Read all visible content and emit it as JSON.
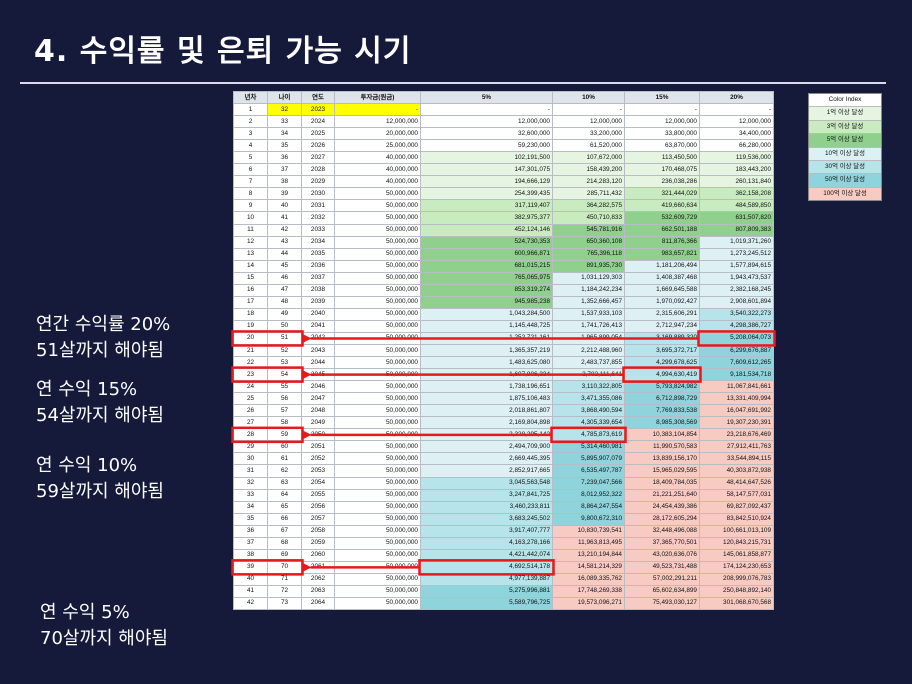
{
  "title": "4. 수익률 및 은퇴 가능 시기",
  "headers": [
    "년차",
    "나이",
    "연도",
    "투자금(원금)",
    "5%",
    "10%",
    "15%",
    "20%"
  ],
  "rows": [
    [
      1,
      32,
      2023,
      "-",
      "-",
      "-",
      "-",
      "-"
    ],
    [
      2,
      33,
      2024,
      "12,000,000",
      "12,000,000",
      "12,000,000",
      "12,000,000",
      "12,000,000"
    ],
    [
      3,
      34,
      2025,
      "20,000,000",
      "32,600,000",
      "33,200,000",
      "33,800,000",
      "34,400,000"
    ],
    [
      4,
      35,
      2026,
      "25,000,000",
      "59,230,000",
      "61,520,000",
      "63,870,000",
      "66,280,000"
    ],
    [
      5,
      36,
      2027,
      "40,000,000",
      "102,191,500",
      "107,672,000",
      "113,450,500",
      "119,536,000"
    ],
    [
      6,
      37,
      2028,
      "40,000,000",
      "147,301,075",
      "158,439,200",
      "170,468,075",
      "183,443,200"
    ],
    [
      7,
      38,
      2029,
      "40,000,000",
      "194,666,129",
      "214,283,120",
      "236,038,286",
      "260,131,840"
    ],
    [
      8,
      39,
      2030,
      "50,000,000",
      "254,399,435",
      "285,711,432",
      "321,444,029",
      "362,158,208"
    ],
    [
      9,
      40,
      2031,
      "50,000,000",
      "317,119,407",
      "364,282,575",
      "419,660,634",
      "484,589,850"
    ],
    [
      10,
      41,
      2032,
      "50,000,000",
      "382,975,377",
      "450,710,833",
      "532,609,729",
      "631,507,820"
    ],
    [
      11,
      42,
      2033,
      "50,000,000",
      "452,124,146",
      "545,781,916",
      "662,501,188",
      "807,809,383"
    ],
    [
      12,
      43,
      2034,
      "50,000,000",
      "524,730,353",
      "650,360,108",
      "811,876,366",
      "1,019,371,260"
    ],
    [
      13,
      44,
      2035,
      "50,000,000",
      "600,966,871",
      "765,396,118",
      "983,657,821",
      "1,273,245,512"
    ],
    [
      14,
      45,
      2036,
      "50,000,000",
      "681,015,215",
      "891,935,730",
      "1,181,206,494",
      "1,577,894,615"
    ],
    [
      15,
      46,
      2037,
      "50,000,000",
      "765,065,975",
      "1,031,129,303",
      "1,408,387,468",
      "1,943,473,537"
    ],
    [
      16,
      47,
      2038,
      "50,000,000",
      "853,319,274",
      "1,184,242,234",
      "1,669,645,588",
      "2,382,168,245"
    ],
    [
      17,
      48,
      2039,
      "50,000,000",
      "945,985,238",
      "1,352,666,457",
      "1,970,092,427",
      "2,908,601,894"
    ],
    [
      18,
      49,
      2040,
      "50,000,000",
      "1,043,284,500",
      "1,537,933,103",
      "2,315,606,291",
      "3,540,322,273"
    ],
    [
      19,
      50,
      2041,
      "50,000,000",
      "1,145,448,725",
      "1,741,726,413",
      "2,712,947,234",
      "4,298,386,727"
    ],
    [
      20,
      51,
      2042,
      "50,000,000",
      "1,252,721,161",
      "1,965,899,054",
      "3,169,889,320",
      "5,208,064,073"
    ],
    [
      21,
      52,
      2043,
      "50,000,000",
      "1,365,357,219",
      "2,212,488,960",
      "3,695,372,717",
      "6,299,676,887"
    ],
    [
      22,
      53,
      2044,
      "50,000,000",
      "1,483,625,080",
      "2,483,737,855",
      "4,299,678,625",
      "7,609,612,265"
    ],
    [
      23,
      54,
      2045,
      "50,000,000",
      "1,607,806,334",
      "2,782,111,641",
      "4,994,630,419",
      "9,181,534,718"
    ],
    [
      24,
      55,
      2046,
      "50,000,000",
      "1,738,196,651",
      "3,110,322,805",
      "5,793,824,982",
      "11,067,841,661"
    ],
    [
      25,
      56,
      2047,
      "50,000,000",
      "1,875,106,483",
      "3,471,355,086",
      "6,712,898,729",
      "13,331,409,994"
    ],
    [
      26,
      57,
      2048,
      "50,000,000",
      "2,018,861,807",
      "3,868,490,594",
      "7,769,833,538",
      "16,047,691,992"
    ],
    [
      27,
      58,
      2049,
      "50,000,000",
      "2,169,804,898",
      "4,305,339,654",
      "8,985,308,569",
      "19,307,230,391"
    ],
    [
      28,
      59,
      2050,
      "50,000,000",
      "2,328,295,142",
      "4,785,873,619",
      "10,383,104,854",
      "23,218,676,469"
    ],
    [
      29,
      60,
      2051,
      "50,000,000",
      "2,494,709,900",
      "5,314,460,981",
      "11,990,570,583",
      "27,912,411,763"
    ],
    [
      30,
      61,
      2052,
      "50,000,000",
      "2,669,445,395",
      "5,895,907,079",
      "13,839,156,170",
      "33,544,894,115"
    ],
    [
      31,
      62,
      2053,
      "50,000,000",
      "2,852,917,665",
      "6,535,497,787",
      "15,965,029,595",
      "40,303,872,938"
    ],
    [
      32,
      63,
      2054,
      "50,000,000",
      "3,045,563,548",
      "7,239,047,566",
      "18,409,784,035",
      "48,414,647,526"
    ],
    [
      33,
      64,
      2055,
      "50,000,000",
      "3,247,841,725",
      "8,012,952,322",
      "21,221,251,640",
      "58,147,577,031"
    ],
    [
      34,
      65,
      2056,
      "50,000,000",
      "3,460,233,811",
      "8,864,247,554",
      "24,454,439,386",
      "69,827,092,437"
    ],
    [
      35,
      66,
      2057,
      "50,000,000",
      "3,683,245,502",
      "9,800,672,310",
      "28,172,605,294",
      "83,842,510,924"
    ],
    [
      36,
      67,
      2058,
      "50,000,000",
      "3,917,407,777",
      "10,830,739,541",
      "32,448,496,088",
      "100,661,013,109"
    ],
    [
      37,
      68,
      2059,
      "50,000,000",
      "4,163,278,166",
      "11,963,813,495",
      "37,365,770,501",
      "120,843,215,731"
    ],
    [
      38,
      69,
      2060,
      "50,000,000",
      "4,421,442,074",
      "13,210,194,844",
      "43,020,636,076",
      "145,061,858,877"
    ],
    [
      39,
      70,
      2061,
      "50,000,000",
      "4,692,514,178",
      "14,581,214,329",
      "49,523,731,488",
      "174,124,230,653"
    ],
    [
      40,
      71,
      2062,
      "50,000,000",
      "4,977,139,887",
      "16,089,335,762",
      "57,002,291,211",
      "208,999,076,783"
    ],
    [
      41,
      72,
      2063,
      "50,000,000",
      "5,275,996,881",
      "17,748,269,338",
      "65,602,634,899",
      "250,848,892,140"
    ],
    [
      42,
      73,
      2064,
      "50,000,000",
      "5,589,796,725",
      "19,573,096,271",
      "75,493,030,127",
      "301,068,670,568"
    ]
  ],
  "colors": {
    "t1": "#e6f5e2",
    "t3": "#c8ebc0",
    "t5": "#8fd08d",
    "t10": "#ddf1f5",
    "t30": "#b6e4ea",
    "t50": "#8fd3dc",
    "t100": "#f8cbc2",
    "highlight_yellow": "#ffff00",
    "red_box": "#e8191c"
  },
  "legend": {
    "title": "Color Index",
    "items": [
      "1억 이상 달성",
      "3억 이상 달성",
      "5억 이상 달성",
      "10억 이상 달성",
      "30억 이상 달성",
      "50억 이상 달성",
      "100억 이상 달성"
    ]
  },
  "notes": {
    "n20_line1": "연간 수익률 20%",
    "n20_line2": "51살까지  해야됨",
    "n15_line1": "연 수익 15%",
    "n15_line2": "54살까지  해야됨",
    "n10_line1": "연 수익 10%",
    "n10_line2": "59살까지  해야됨",
    "n5_line1": "연 수익 5%",
    "n5_line2": "70살까지 해야됨"
  },
  "marked_rows": [
    {
      "row": 20,
      "rate": "20%"
    },
    {
      "row": 23,
      "rate": "15%"
    },
    {
      "row": 28,
      "rate": "10%"
    },
    {
      "row": 39,
      "rate": "5%"
    }
  ]
}
